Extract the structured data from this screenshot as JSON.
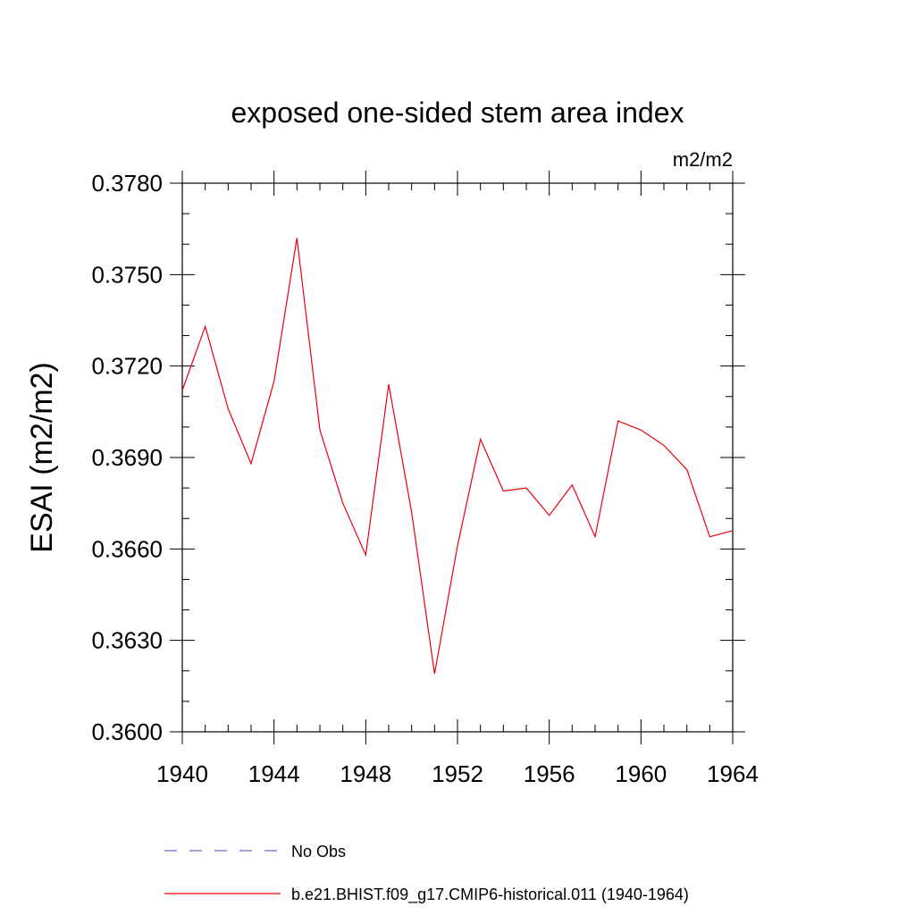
{
  "chart_data": {
    "type": "line",
    "title": "exposed one-sided stem area index",
    "units": "m2/m2",
    "ylabel": "ESAI  (m2/m2)",
    "xlabel": "",
    "xlim": [
      1940,
      1964
    ],
    "ylim": [
      0.36,
      0.378
    ],
    "x_ticks": [
      1940,
      1944,
      1948,
      1952,
      1956,
      1960,
      1964
    ],
    "x_tick_labels": [
      "1940",
      "1944",
      "1948",
      "1952",
      "1956",
      "1960",
      "1964"
    ],
    "y_ticks": [
      0.36,
      0.363,
      0.366,
      0.369,
      0.372,
      0.375,
      0.378
    ],
    "y_tick_labels": [
      "0.3600",
      "0.3630",
      "0.3660",
      "0.3690",
      "0.3720",
      "0.3750",
      "0.3780"
    ],
    "y_minor_step": 0.001,
    "x_minor_step": 1,
    "grid": false,
    "legend_position": "bottom",
    "series": [
      {
        "name": "No Obs",
        "color": "#7b68c8",
        "dash": "dashed",
        "x": [],
        "values": []
      },
      {
        "name": "b.e21.BHIST.f09_g17.CMIP6-historical.011 (1940-1964)",
        "color": "#e8000b",
        "dash": "solid",
        "x": [
          1940,
          1941,
          1942,
          1943,
          1944,
          1945,
          1946,
          1947,
          1948,
          1949,
          1950,
          1951,
          1952,
          1953,
          1954,
          1955,
          1956,
          1957,
          1958,
          1959,
          1960,
          1961,
          1962,
          1963,
          1964
        ],
        "values": [
          0.3712,
          0.3733,
          0.3706,
          0.3688,
          0.3715,
          0.3762,
          0.3699,
          0.3675,
          0.3658,
          0.3714,
          0.3672,
          0.3619,
          0.3661,
          0.3696,
          0.3679,
          0.368,
          0.3671,
          0.3681,
          0.3664,
          0.3702,
          0.3699,
          0.3694,
          0.3686,
          0.3664,
          0.3666
        ]
      }
    ]
  }
}
